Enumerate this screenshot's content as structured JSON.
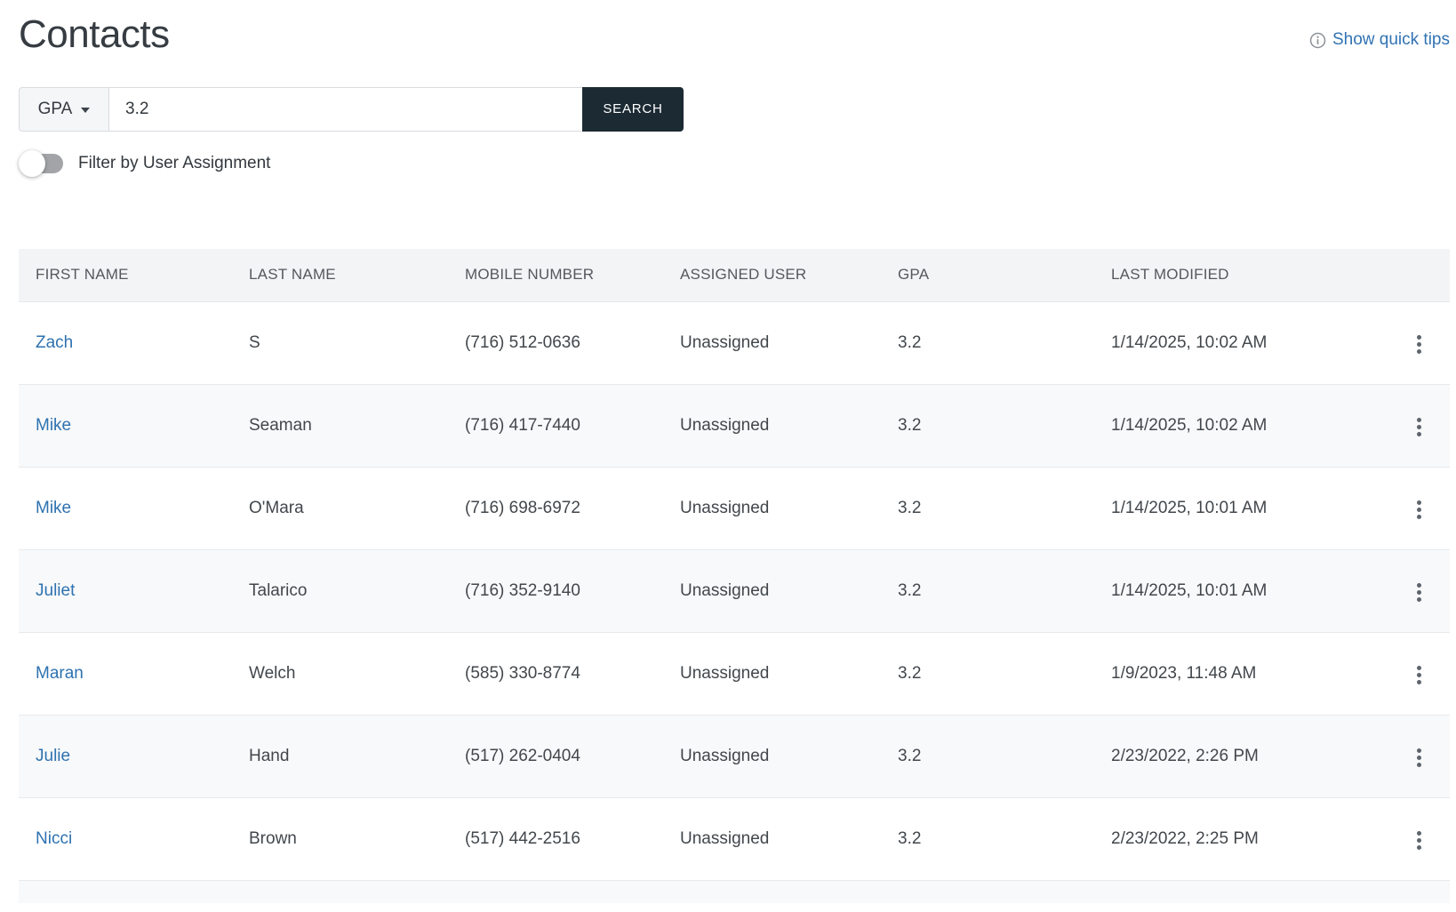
{
  "page": {
    "title": "Contacts"
  },
  "quick_tips": {
    "label": "Show quick tips"
  },
  "search": {
    "field_selector": "GPA",
    "value": "3.2",
    "button_label": "SEARCH"
  },
  "filter_toggle": {
    "label": "Filter by User Assignment",
    "state": "off"
  },
  "table": {
    "columns": [
      "FIRST NAME",
      "LAST NAME",
      "MOBILE NUMBER",
      "ASSIGNED USER",
      "GPA",
      "LAST MODIFIED"
    ],
    "rows": [
      {
        "first_name": "Zach",
        "last_name": "S",
        "mobile": "(716) 512-0636",
        "assigned_user": "Unassigned",
        "gpa": "3.2",
        "last_modified": "1/14/2025, 10:02 AM"
      },
      {
        "first_name": "Mike",
        "last_name": "Seaman",
        "mobile": "(716) 417-7440",
        "assigned_user": "Unassigned",
        "gpa": "3.2",
        "last_modified": "1/14/2025, 10:02 AM"
      },
      {
        "first_name": "Mike",
        "last_name": "O'Mara",
        "mobile": "(716) 698-6972",
        "assigned_user": "Unassigned",
        "gpa": "3.2",
        "last_modified": "1/14/2025, 10:01 AM"
      },
      {
        "first_name": "Juliet",
        "last_name": "Talarico",
        "mobile": "(716) 352-9140",
        "assigned_user": "Unassigned",
        "gpa": "3.2",
        "last_modified": "1/14/2025, 10:01 AM"
      },
      {
        "first_name": "Maran",
        "last_name": "Welch",
        "mobile": "(585) 330-8774",
        "assigned_user": "Unassigned",
        "gpa": "3.2",
        "last_modified": "1/9/2023, 11:48 AM"
      },
      {
        "first_name": "Julie",
        "last_name": "Hand",
        "mobile": "(517) 262-0404",
        "assigned_user": "Unassigned",
        "gpa": "3.2",
        "last_modified": "2/23/2022, 2:26 PM"
      },
      {
        "first_name": "Nicci",
        "last_name": "Brown",
        "mobile": "(517) 442-2516",
        "assigned_user": "Unassigned",
        "gpa": "3.2",
        "last_modified": "2/23/2022, 2:25 PM"
      }
    ]
  },
  "colors": {
    "link_blue": "#2e72b0",
    "quick_tips_blue": "#3173b4",
    "search_button_dark": "#1c2a33",
    "table_header_bg": "#f3f4f6",
    "row_alt_bg": "#f8f9fa",
    "row_border": "#e7e9ea",
    "text_dark": "#42474c",
    "header_text": "#54595e",
    "toggle_track_gray": "#a2a4a8"
  }
}
